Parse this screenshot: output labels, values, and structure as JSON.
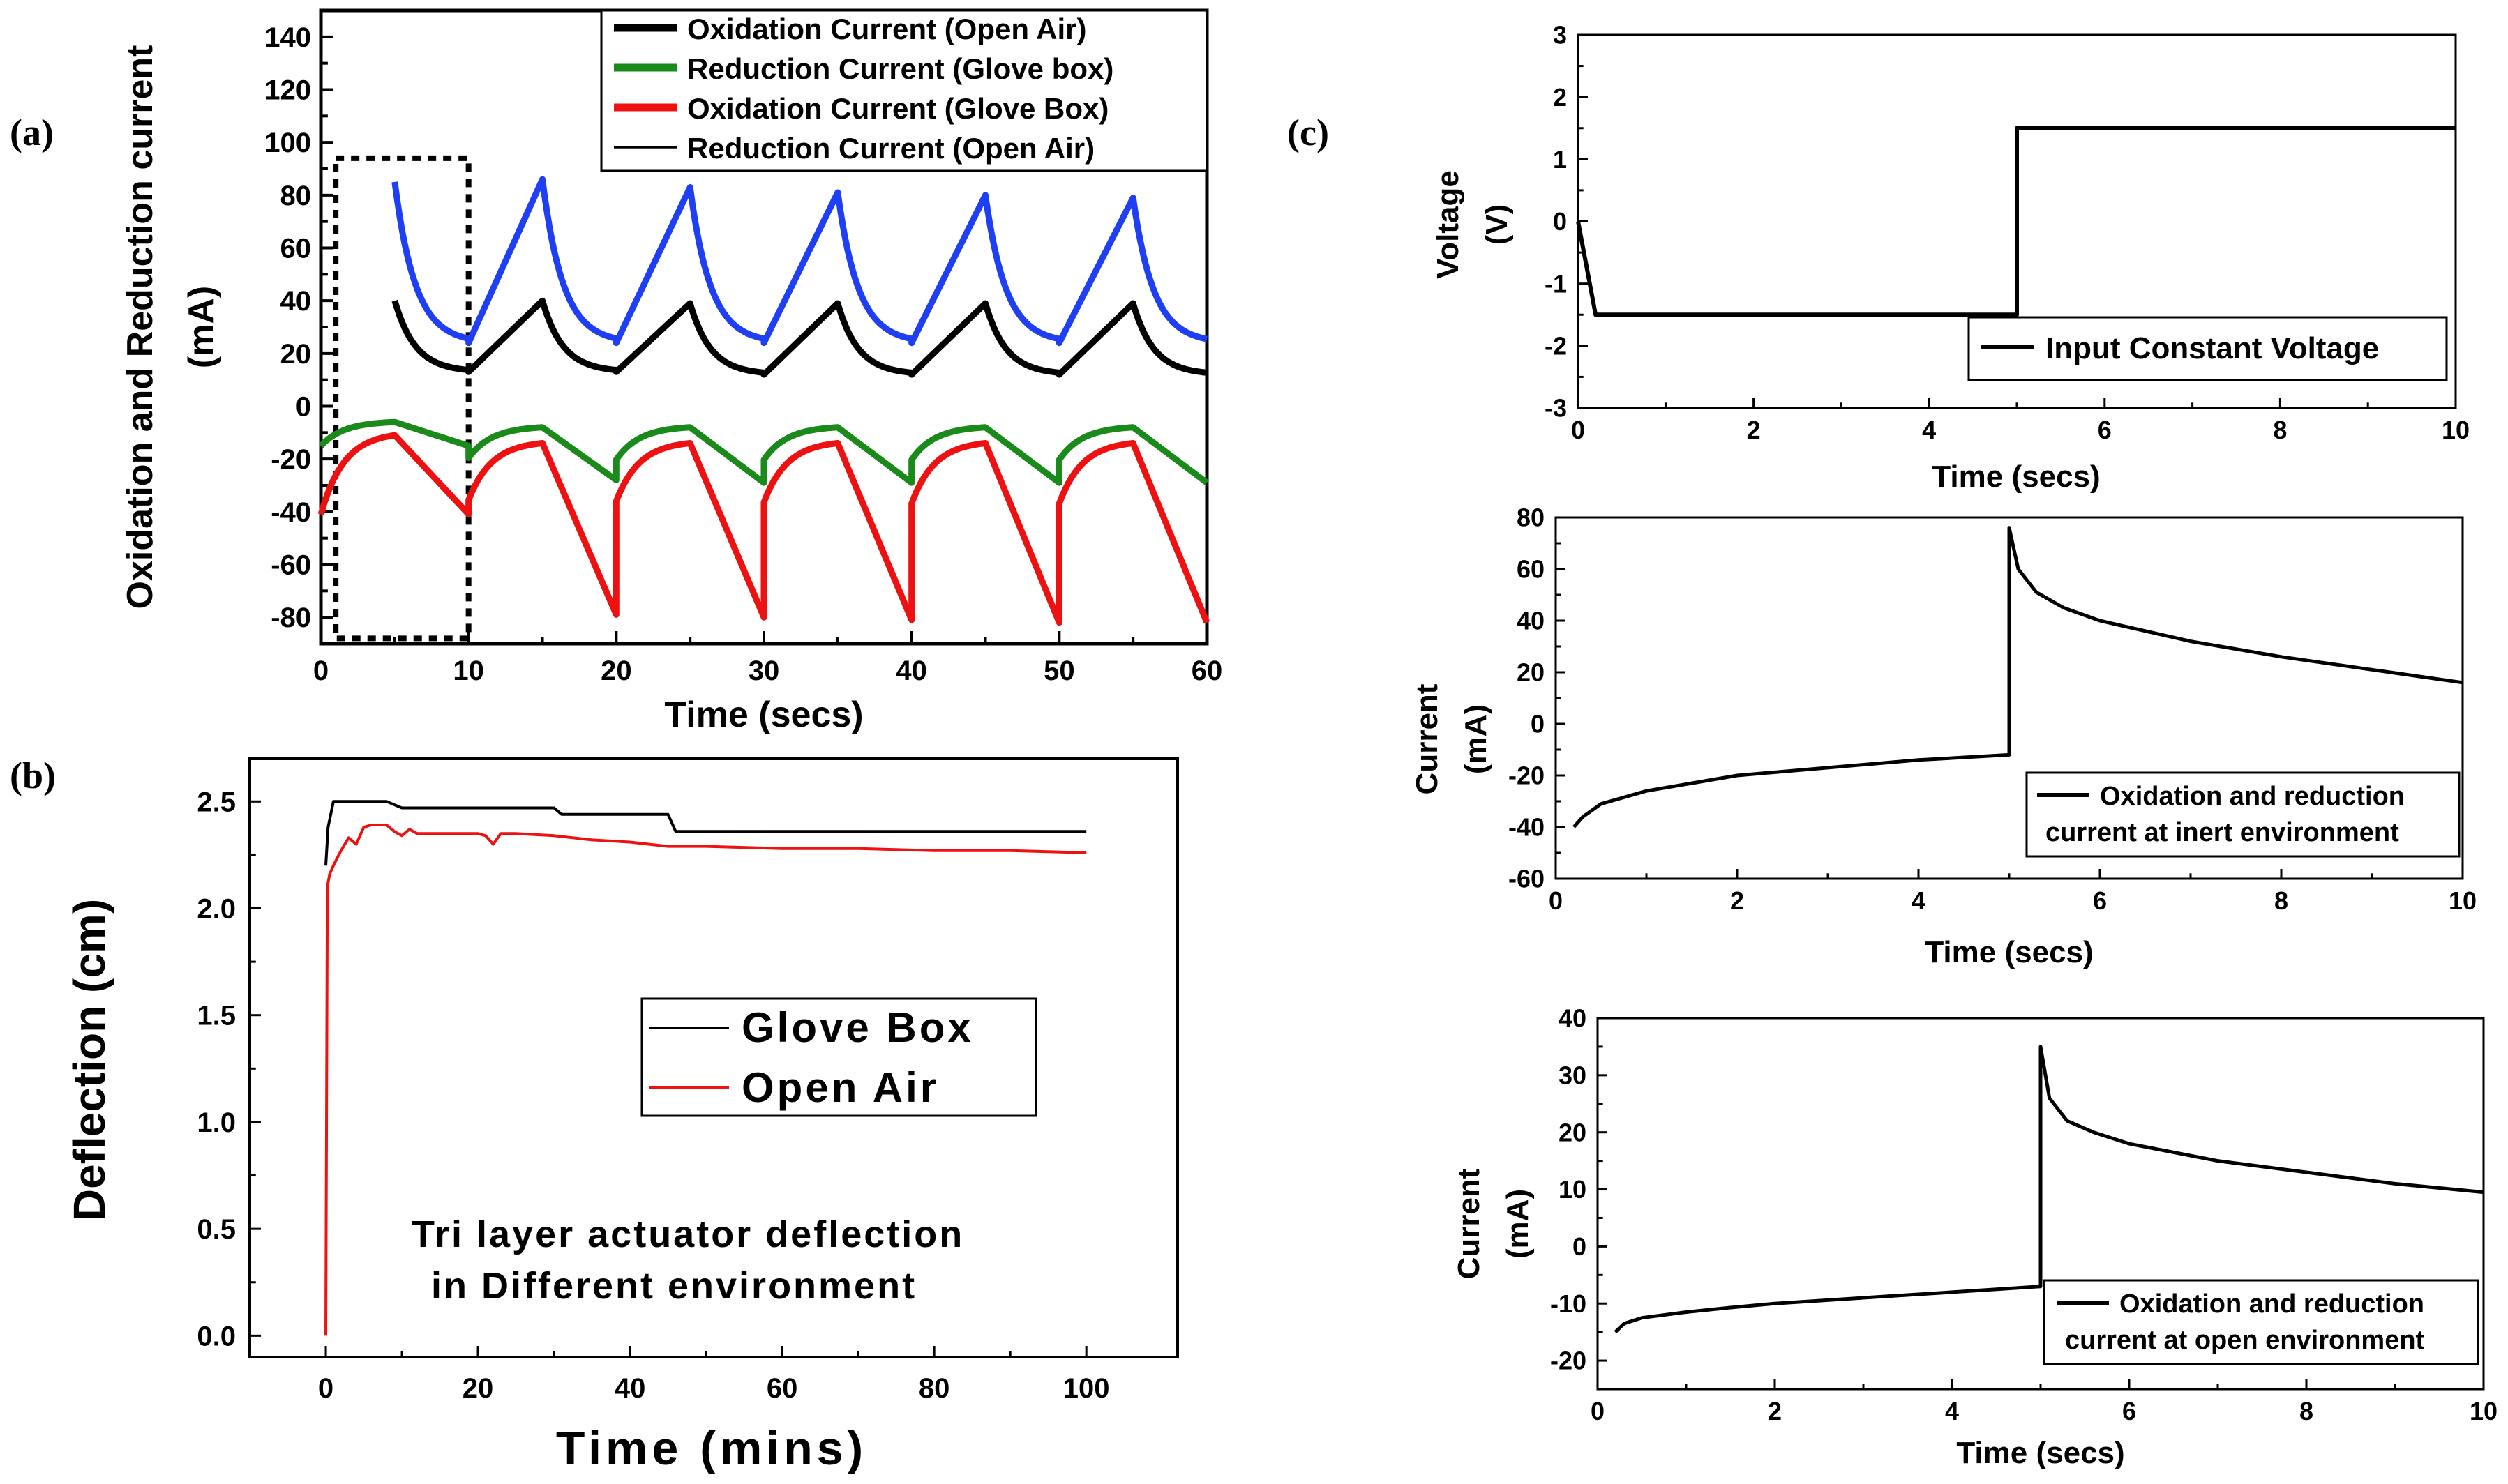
{
  "panel_labels": [
    "(a)",
    "(b)",
    "(c)"
  ],
  "colors": {
    "blue": "#1f3ff5",
    "black": "#000000",
    "green": "#1a8a1a",
    "red": "#ee1111"
  },
  "chart_data": [
    {
      "id": "a",
      "type": "line",
      "xlabel": "Time (secs)",
      "ylabel_lines": [
        "Oxidation and Reduction current",
        "(mA)"
      ],
      "xlim": [
        0,
        60
      ],
      "ylim": [
        -90,
        150
      ],
      "xticks": [
        0,
        10,
        20,
        30,
        40,
        50,
        60
      ],
      "yticks": [
        -80,
        -60,
        -40,
        -20,
        0,
        20,
        40,
        60,
        80,
        100,
        120,
        140
      ],
      "legend": [
        {
          "label": "Oxidation Current (Open Air)",
          "color": "#000000",
          "weight": "thick"
        },
        {
          "label": "Reduction Current (Glove box)",
          "color": "#1a8a1a",
          "weight": "thick"
        },
        {
          "label": "Oxidation Current (Glove Box)",
          "color": "#ee1111",
          "weight": "thick"
        },
        {
          "label": "Reduction Current (Open Air)",
          "color": "#000000",
          "weight": "thin"
        }
      ],
      "series": [
        {
          "name": "Blue trace",
          "color": "#1f3ff5",
          "start": 5,
          "end": 60,
          "peaks": [
            85,
            86,
            83,
            81,
            80,
            79
          ],
          "troughs": [
            24,
            24,
            24,
            24,
            24,
            24
          ]
        },
        {
          "name": "Black trace",
          "color": "#000000",
          "start": 5,
          "end": 60,
          "peaks": [
            40,
            40,
            39,
            39,
            39,
            39
          ],
          "troughs": [
            13,
            13,
            13,
            12,
            12,
            12
          ]
        },
        {
          "name": "Green trace",
          "color": "#1a8a1a",
          "start": 0,
          "end": 60,
          "peaks": [
            -6,
            -8,
            -8,
            -8,
            -8,
            -8
          ],
          "troughs": [
            -15,
            -28,
            -29,
            -29,
            -29,
            -29
          ]
        },
        {
          "name": "Red trace",
          "color": "#ee1111",
          "start": 0,
          "end": 60,
          "peaks": [
            -11,
            -14,
            -14,
            -14,
            -14,
            -14
          ],
          "troughs": [
            -41,
            -79,
            -80,
            -81,
            -82,
            -82
          ]
        }
      ],
      "annotation": {
        "shape": "dotted-rectangle",
        "x": [
          1,
          10
        ],
        "y": [
          -88,
          94
        ]
      }
    },
    {
      "id": "b",
      "type": "line",
      "xlabel": "Time (mins)",
      "ylabel": "Deflection (cm)",
      "xlim": [
        -10,
        112
      ],
      "ylim": [
        -0.1,
        2.7
      ],
      "xticks": [
        0,
        20,
        40,
        60,
        80,
        100
      ],
      "yticks": [
        0.0,
        0.5,
        1.0,
        1.5,
        2.0,
        2.5
      ],
      "ytick_labels": [
        "0.0",
        "0.5",
        "1.0",
        "1.5",
        "2.0",
        "2.5"
      ],
      "legend": [
        {
          "label": "Glove Box",
          "color": "#000000"
        },
        {
          "label": "Open Air",
          "color": "#ee1111"
        }
      ],
      "annotation_lines": [
        "Tri layer actuator deflection",
        "in Different environment"
      ],
      "series": [
        {
          "name": "Glove Box",
          "color": "#000000",
          "x": [
            0,
            0.3,
            1,
            2,
            8,
            10,
            30,
            31,
            45,
            46,
            100
          ],
          "y": [
            2.2,
            2.38,
            2.5,
            2.5,
            2.5,
            2.47,
            2.47,
            2.44,
            2.44,
            2.36,
            2.36
          ]
        },
        {
          "name": "Open Air",
          "color": "#ee1111",
          "x": [
            0,
            0.2,
            0.5,
            1,
            2,
            3,
            4,
            5,
            6,
            7,
            8,
            9,
            10,
            11,
            12,
            15,
            20,
            21,
            22,
            23,
            25,
            30,
            35,
            40,
            45,
            50,
            60,
            70,
            80,
            90,
            100
          ],
          "y": [
            0.0,
            2.1,
            2.16,
            2.2,
            2.27,
            2.33,
            2.3,
            2.38,
            2.39,
            2.39,
            2.39,
            2.36,
            2.34,
            2.37,
            2.35,
            2.35,
            2.35,
            2.34,
            2.3,
            2.35,
            2.35,
            2.34,
            2.32,
            2.31,
            2.29,
            2.29,
            2.28,
            2.28,
            2.27,
            2.27,
            2.26
          ]
        }
      ]
    },
    {
      "id": "c1",
      "type": "line",
      "xlabel": "Time (secs)",
      "ylabel_lines": [
        "Voltage",
        "(V)"
      ],
      "xlim": [
        0,
        10
      ],
      "ylim": [
        -3,
        3
      ],
      "xticks": [
        0,
        2,
        4,
        6,
        8,
        10
      ],
      "yticks": [
        -3,
        -2,
        -1,
        0,
        1,
        2,
        3
      ],
      "legend": [
        {
          "label": "Input Constant Voltage",
          "color": "#000000"
        }
      ],
      "series": [
        {
          "name": "Input Constant Voltage",
          "color": "#000000",
          "x": [
            0,
            0.2,
            5,
            5,
            10
          ],
          "y": [
            0,
            -1.5,
            -1.5,
            1.5,
            1.5
          ]
        }
      ]
    },
    {
      "id": "c2",
      "type": "line",
      "xlabel": "Time (secs)",
      "ylabel_lines": [
        "Current",
        "(mA)"
      ],
      "xlim": [
        0,
        10
      ],
      "ylim": [
        -60,
        80
      ],
      "xticks": [
        0,
        2,
        4,
        6,
        8,
        10
      ],
      "yticks": [
        -60,
        -40,
        -20,
        0,
        20,
        40,
        60,
        80
      ],
      "legend_lines": [
        "Oxidation and reduction",
        "current at inert environment"
      ],
      "series": [
        {
          "name": "Oxidation and reduction current at inert environment",
          "color": "#000000",
          "x": [
            0.2,
            0.3,
            0.5,
            1,
            1.5,
            2,
            3,
            4,
            5,
            5,
            5.1,
            5.3,
            5.6,
            6,
            7,
            8,
            9,
            10
          ],
          "y": [
            -40,
            -36,
            -31,
            -26,
            -23,
            -20,
            -17,
            -14,
            -12,
            76,
            60,
            51,
            45,
            40,
            32,
            26,
            21,
            16
          ]
        }
      ]
    },
    {
      "id": "c3",
      "type": "line",
      "xlabel": "Time (secs)",
      "ylabel_lines": [
        "Current",
        "(mA)"
      ],
      "xlim": [
        0,
        10
      ],
      "ylim": [
        -25,
        40
      ],
      "xticks": [
        0,
        2,
        4,
        6,
        8,
        10
      ],
      "yticks": [
        -20,
        -10,
        0,
        10,
        20,
        30,
        40
      ],
      "legend_lines": [
        "Oxidation and reduction",
        "current at open environment"
      ],
      "series": [
        {
          "name": "Oxidation and reduction current at open environment",
          "color": "#000000",
          "x": [
            0.2,
            0.3,
            0.5,
            1,
            1.5,
            2,
            3,
            4,
            5,
            5,
            5.1,
            5.3,
            5.6,
            6,
            7,
            8,
            9,
            10
          ],
          "y": [
            -15,
            -13.5,
            -12.5,
            -11.5,
            -10.7,
            -10,
            -9,
            -8,
            -7,
            35,
            26,
            22,
            20,
            18,
            15,
            13,
            11,
            9.5
          ]
        }
      ]
    }
  ]
}
